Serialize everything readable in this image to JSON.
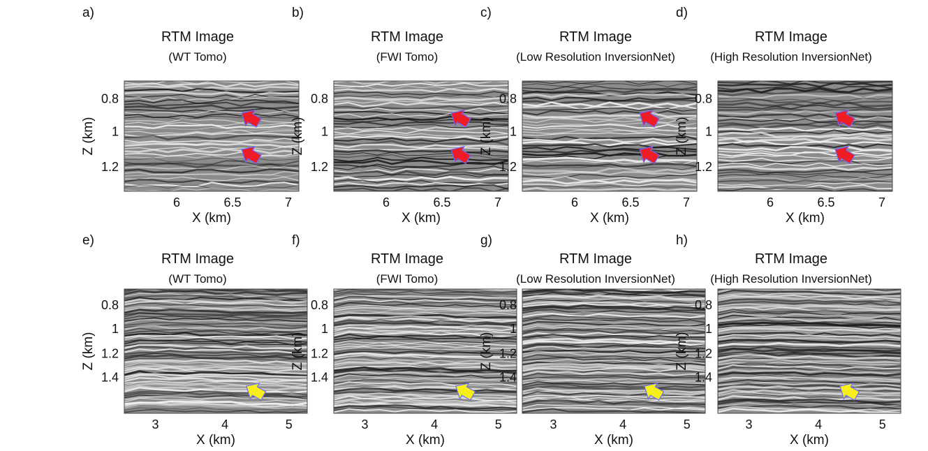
{
  "figure": {
    "panels": [
      {
        "letter": "a)",
        "title": "RTM Image",
        "subtitle": "(WT Tomo)",
        "row": 0,
        "col": 0,
        "marker": "red",
        "xlabel": "X (km)",
        "ylabel": "Z (km)",
        "xticks": [
          "6",
          "6.5",
          "7"
        ],
        "yticks": [
          "0.8",
          "1",
          "1.2"
        ]
      },
      {
        "letter": "b)",
        "title": "RTM Image",
        "subtitle": "(FWI Tomo)",
        "row": 0,
        "col": 1,
        "marker": "red",
        "xlabel": "X (km)",
        "ylabel": "Z (km)",
        "xticks": [
          "6",
          "6.5",
          "7"
        ],
        "yticks": [
          "0.8",
          "1",
          "1.2"
        ]
      },
      {
        "letter": "c)",
        "title": "RTM Image",
        "subtitle": "(Low Resolution InversionNet)",
        "row": 0,
        "col": 2,
        "marker": "red",
        "xlabel": "X (km)",
        "ylabel": "Z (km)",
        "xticks": [
          "6",
          "6.5",
          "7"
        ],
        "yticks": [
          "0.8",
          "1",
          "1.2"
        ]
      },
      {
        "letter": "d)",
        "title": "RTM Image",
        "subtitle": "(High Resolution InversionNet)",
        "row": 0,
        "col": 3,
        "marker": "red",
        "xlabel": "X (km)",
        "ylabel": "Z (km)",
        "xticks": [
          "6",
          "6.5",
          "7"
        ],
        "yticks": [
          "0.8",
          "1",
          "1.2"
        ]
      },
      {
        "letter": "e)",
        "title": "RTM Image",
        "subtitle": "(WT Tomo)",
        "row": 1,
        "col": 0,
        "marker": "yellow",
        "xlabel": "X (km)",
        "ylabel": "Z (km)",
        "xticks": [
          "3",
          "4",
          "5"
        ],
        "yticks": [
          "0.8",
          "1",
          "1.2",
          "1.4"
        ]
      },
      {
        "letter": "f)",
        "title": "RTM Image",
        "subtitle": "(FWI Tomo)",
        "row": 1,
        "col": 1,
        "marker": "yellow",
        "xlabel": "X (km)",
        "ylabel": "Z (km)",
        "xticks": [
          "3",
          "4",
          "5"
        ],
        "yticks": [
          "0.8",
          "1",
          "1.2",
          "1.4"
        ]
      },
      {
        "letter": "g)",
        "title": "RTM Image",
        "subtitle": "(Low Resolution InversionNet)",
        "row": 1,
        "col": 2,
        "marker": "yellow",
        "xlabel": "X (km)",
        "ylabel": "Z (km)",
        "xticks": [
          "3",
          "4",
          "5"
        ],
        "yticks": [
          "0.8",
          "1",
          "1.2",
          "1.4"
        ]
      },
      {
        "letter": "h)",
        "title": "RTM Image",
        "subtitle": "(High Resolution InversionNet)",
        "row": 1,
        "col": 3,
        "marker": "yellow",
        "xlabel": "X (km)",
        "ylabel": "Z (km)",
        "xticks": [
          "3",
          "4",
          "5"
        ],
        "yticks": [
          "0.8",
          "1",
          "1.2",
          "1.4"
        ]
      }
    ],
    "colors": {
      "red_arrow": "#ee1c25",
      "yellow_arrow": "#f7ef1a",
      "arrow_edge": "#6a6aff",
      "seismic_gray": "#8c8c8c"
    }
  }
}
